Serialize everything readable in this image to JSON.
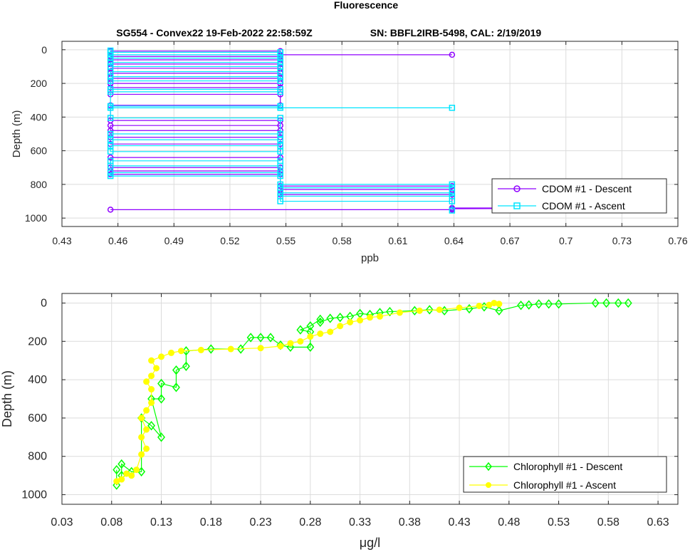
{
  "figure": {
    "title": "Fluorescence",
    "subtitle_left": "SG554 - Convex22 19-Feb-2022 22:58:59Z",
    "subtitle_right": "SN: BBFL2IRB-5498, CAL: 2/19/2019"
  },
  "chart_data": [
    {
      "type": "line",
      "xlabel": "ppb",
      "ylabel": "Depth (m)",
      "xlim": [
        0.43,
        0.76
      ],
      "ylim": [
        1050,
        -50
      ],
      "y_reversed": true,
      "grid": true,
      "legend_position": "bottom-right",
      "xticks": [
        "0.43",
        "0.46",
        "0.49",
        "0.52",
        "0.55",
        "0.58",
        "0.61",
        "0.64",
        "0.67",
        "0.7",
        "0.73",
        "0.76"
      ],
      "yticks": [
        "0",
        "200",
        "400",
        "600",
        "800",
        "1000"
      ],
      "series": [
        {
          "name": "CDOM #1 - Descent",
          "color": "#8f00ff",
          "marker": "circle",
          "points": [
            [
              0.639,
              30
            ],
            [
              0.547,
              30
            ],
            [
              0.547,
              8
            ],
            [
              0.456,
              8
            ],
            [
              0.456,
              40
            ],
            [
              0.547,
              40
            ],
            [
              0.547,
              60
            ],
            [
              0.456,
              60
            ],
            [
              0.456,
              85
            ],
            [
              0.547,
              85
            ],
            [
              0.547,
              110
            ],
            [
              0.456,
              110
            ],
            [
              0.456,
              140
            ],
            [
              0.547,
              140
            ],
            [
              0.547,
              170
            ],
            [
              0.456,
              170
            ],
            [
              0.456,
              200
            ],
            [
              0.547,
              200
            ],
            [
              0.547,
              225
            ],
            [
              0.456,
              225
            ],
            [
              0.456,
              265
            ],
            [
              0.547,
              265
            ],
            [
              0.547,
              330
            ],
            [
              0.456,
              330
            ],
            [
              0.456,
              420
            ],
            [
              0.547,
              420
            ],
            [
              0.547,
              450
            ],
            [
              0.456,
              450
            ],
            [
              0.456,
              480
            ],
            [
              0.547,
              480
            ],
            [
              0.547,
              520
            ],
            [
              0.456,
              520
            ],
            [
              0.456,
              560
            ],
            [
              0.547,
              560
            ],
            [
              0.547,
              640
            ],
            [
              0.456,
              640
            ],
            [
              0.456,
              700
            ],
            [
              0.547,
              700
            ],
            [
              0.547,
              720
            ],
            [
              0.456,
              720
            ],
            [
              0.456,
              740
            ],
            [
              0.547,
              740
            ],
            [
              0.547,
              810
            ],
            [
              0.639,
              810
            ],
            [
              0.639,
              830
            ],
            [
              0.547,
              830
            ],
            [
              0.547,
              860
            ],
            [
              0.639,
              860
            ],
            [
              0.639,
              940
            ],
            [
              0.73,
              940
            ],
            [
              0.639,
              945
            ],
            [
              0.639,
              950
            ],
            [
              0.456,
              950
            ]
          ]
        },
        {
          "name": "CDOM #1 - Ascent",
          "color": "#00e5ff",
          "marker": "square",
          "points": [
            [
              0.639,
              955
            ],
            [
              0.639,
              900
            ],
            [
              0.547,
              900
            ],
            [
              0.547,
              870
            ],
            [
              0.639,
              870
            ],
            [
              0.639,
              850
            ],
            [
              0.547,
              850
            ],
            [
              0.547,
              820
            ],
            [
              0.639,
              820
            ],
            [
              0.639,
              800
            ],
            [
              0.547,
              800
            ],
            [
              0.547,
              750
            ],
            [
              0.456,
              750
            ],
            [
              0.456,
              730
            ],
            [
              0.547,
              730
            ],
            [
              0.547,
              690
            ],
            [
              0.456,
              690
            ],
            [
              0.456,
              660
            ],
            [
              0.547,
              660
            ],
            [
              0.547,
              605
            ],
            [
              0.456,
              605
            ],
            [
              0.456,
              570
            ],
            [
              0.547,
              570
            ],
            [
              0.547,
              535
            ],
            [
              0.456,
              535
            ],
            [
              0.456,
              500
            ],
            [
              0.547,
              500
            ],
            [
              0.547,
              405
            ],
            [
              0.456,
              405
            ],
            [
              0.456,
              345
            ],
            [
              0.639,
              345
            ],
            [
              0.547,
              345
            ],
            [
              0.547,
              335
            ],
            [
              0.456,
              335
            ],
            [
              0.456,
              250
            ],
            [
              0.547,
              250
            ],
            [
              0.547,
              235
            ],
            [
              0.456,
              235
            ],
            [
              0.456,
              185
            ],
            [
              0.547,
              185
            ],
            [
              0.547,
              160
            ],
            [
              0.456,
              160
            ],
            [
              0.456,
              130
            ],
            [
              0.547,
              130
            ],
            [
              0.547,
              100
            ],
            [
              0.456,
              100
            ],
            [
              0.456,
              75
            ],
            [
              0.547,
              75
            ],
            [
              0.547,
              50
            ],
            [
              0.456,
              50
            ],
            [
              0.456,
              30
            ],
            [
              0.547,
              30
            ],
            [
              0.547,
              15
            ],
            [
              0.456,
              15
            ],
            [
              0.456,
              5
            ]
          ]
        }
      ]
    },
    {
      "type": "line",
      "xlabel": "μg/l",
      "ylabel": "Depth (m)",
      "xlim": [
        0.03,
        0.65
      ],
      "ylim": [
        1050,
        -50
      ],
      "y_reversed": true,
      "grid": true,
      "legend_position": "bottom-right",
      "xticks": [
        "0.03",
        "0.08",
        "0.13",
        "0.18",
        "0.23",
        "0.28",
        "0.33",
        "0.38",
        "0.43",
        "0.48",
        "0.53",
        "0.58",
        "0.63"
      ],
      "yticks": [
        "0",
        "200",
        "400",
        "600",
        "800",
        "1000"
      ],
      "series": [
        {
          "name": "Chlorophyll #1 - Descent",
          "color": "#00ff00",
          "marker": "diamond",
          "points": [
            [
              0.6,
              0
            ],
            [
              0.59,
              0
            ],
            [
              0.578,
              0
            ],
            [
              0.567,
              0
            ],
            [
              0.53,
              5
            ],
            [
              0.52,
              5
            ],
            [
              0.51,
              5
            ],
            [
              0.5,
              10
            ],
            [
              0.492,
              12
            ],
            [
              0.47,
              40
            ],
            [
              0.455,
              20
            ],
            [
              0.44,
              30
            ],
            [
              0.415,
              40
            ],
            [
              0.4,
              35
            ],
            [
              0.385,
              40
            ],
            [
              0.36,
              45
            ],
            [
              0.35,
              50
            ],
            [
              0.34,
              60
            ],
            [
              0.33,
              55
            ],
            [
              0.32,
              70
            ],
            [
              0.31,
              75
            ],
            [
              0.3,
              80
            ],
            [
              0.29,
              100
            ],
            [
              0.29,
              85
            ],
            [
              0.28,
              120
            ],
            [
              0.27,
              140
            ],
            [
              0.28,
              150
            ],
            [
              0.28,
              230
            ],
            [
              0.26,
              230
            ],
            [
              0.25,
              220
            ],
            [
              0.24,
              180
            ],
            [
              0.23,
              180
            ],
            [
              0.22,
              180
            ],
            [
              0.21,
              240
            ],
            [
              0.18,
              240
            ],
            [
              0.155,
              250
            ],
            [
              0.155,
              330
            ],
            [
              0.145,
              350
            ],
            [
              0.145,
              440
            ],
            [
              0.13,
              420
            ],
            [
              0.13,
              500
            ],
            [
              0.12,
              500
            ],
            [
              0.13,
              700
            ],
            [
              0.12,
              640
            ],
            [
              0.11,
              600
            ],
            [
              0.11,
              880
            ],
            [
              0.1,
              880
            ],
            [
              0.09,
              840
            ],
            [
              0.09,
              900
            ],
            [
              0.085,
              950
            ],
            [
              0.085,
              870
            ]
          ]
        },
        {
          "name": "Chlorophyll #1 - Ascent",
          "color": "#ffff00",
          "marker": "circle-filled",
          "points": [
            [
              0.085,
              930
            ],
            [
              0.09,
              920
            ],
            [
              0.095,
              890
            ],
            [
              0.1,
              900
            ],
            [
              0.105,
              870
            ],
            [
              0.11,
              790
            ],
            [
              0.115,
              760
            ],
            [
              0.11,
              700
            ],
            [
              0.115,
              660
            ],
            [
              0.11,
              600
            ],
            [
              0.115,
              560
            ],
            [
              0.12,
              520
            ],
            [
              0.12,
              450
            ],
            [
              0.115,
              410
            ],
            [
              0.12,
              380
            ],
            [
              0.125,
              340
            ],
            [
              0.12,
              300
            ],
            [
              0.13,
              280
            ],
            [
              0.14,
              260
            ],
            [
              0.15,
              250
            ],
            [
              0.17,
              245
            ],
            [
              0.2,
              240
            ],
            [
              0.23,
              235
            ],
            [
              0.25,
              225
            ],
            [
              0.26,
              210
            ],
            [
              0.27,
              200
            ],
            [
              0.28,
              175
            ],
            [
              0.29,
              160
            ],
            [
              0.3,
              150
            ],
            [
              0.31,
              120
            ],
            [
              0.32,
              100
            ],
            [
              0.33,
              90
            ],
            [
              0.34,
              75
            ],
            [
              0.35,
              70
            ],
            [
              0.37,
              50
            ],
            [
              0.39,
              40
            ],
            [
              0.41,
              35
            ],
            [
              0.43,
              25
            ],
            [
              0.45,
              15
            ],
            [
              0.46,
              10
            ],
            [
              0.47,
              5
            ],
            [
              0.465,
              0
            ]
          ]
        }
      ]
    }
  ]
}
